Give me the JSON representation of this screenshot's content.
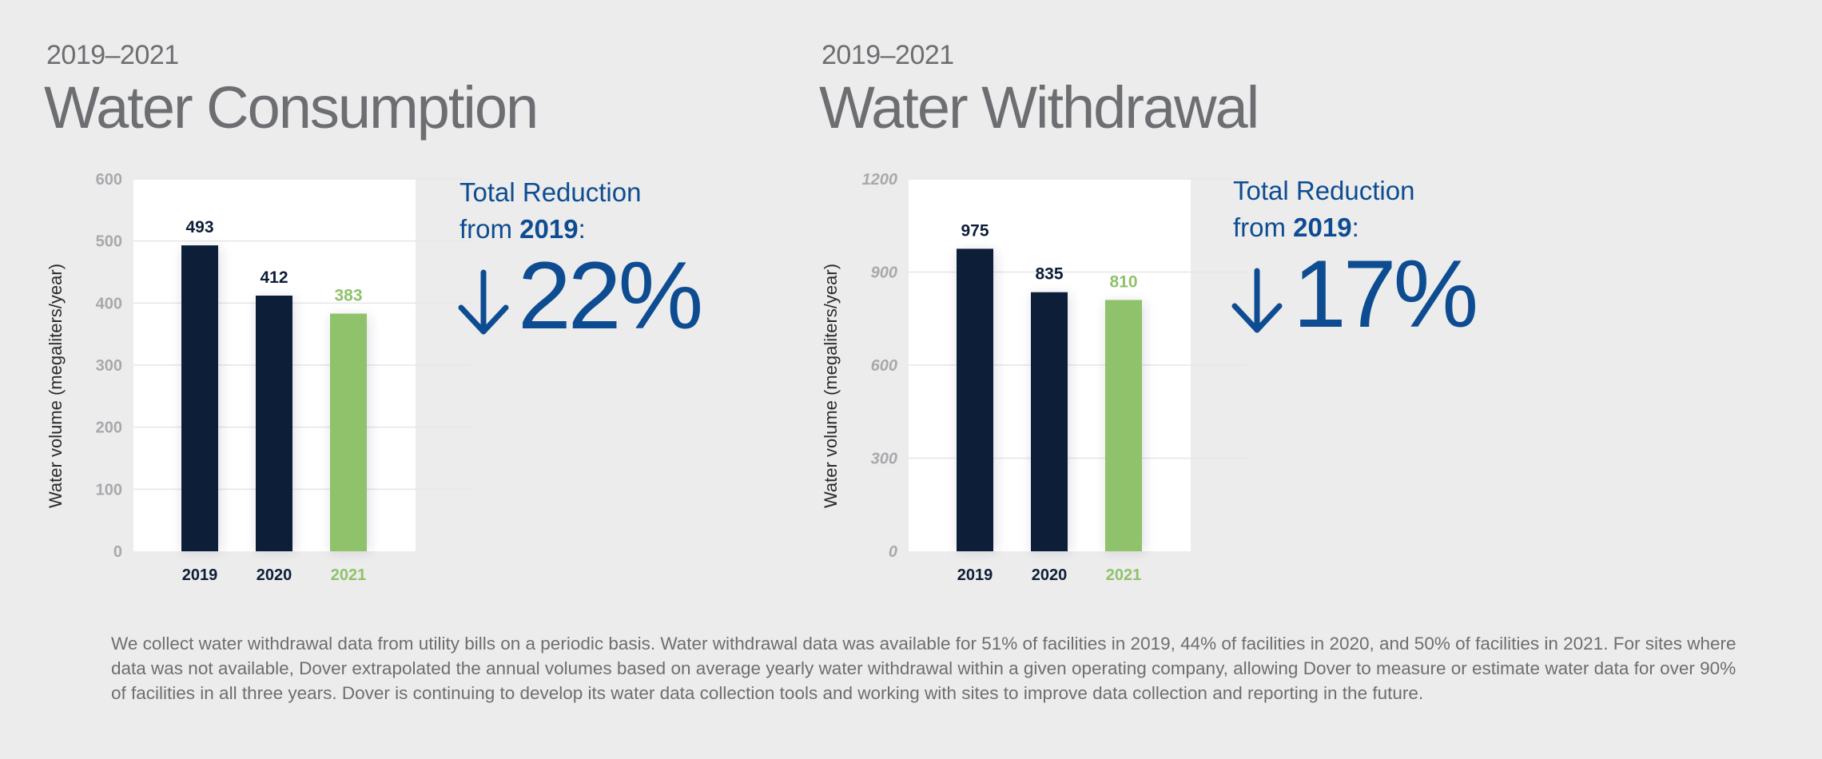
{
  "footnote": "We collect water withdrawal data from utility bills on a periodic basis. Water withdrawal data was available for 51% of facilities in 2019, 44% of facilities in 2020, and 50% of facilities in 2021. For sites where data was not available, Dover extrapolated the annual volumes based on average yearly water withdrawal within a given operating company, allowing Dover to measure or estimate water data for over 90% of facilities in all three years. Dover is continuing to develop its water data collection tools and working with sites to improve data collection and reporting in the future.",
  "colors": {
    "dark_bar": "#0d1e38",
    "green_bar": "#8fc26a",
    "accent_blue": "#0e4c92",
    "text_gray": "#6d6e71"
  },
  "panels": [
    {
      "years": "2019–2021",
      "title": "Water Consumption",
      "reduction_line1": "Total Reduction",
      "reduction_from": "from ",
      "reduction_year": "2019",
      "reduction_colon": ":",
      "reduction_arrow_icon": "arrow-down-icon",
      "reduction_pct": "22%"
    },
    {
      "years": "2019–2021",
      "title": "Water Withdrawal",
      "reduction_line1": "Total Reduction",
      "reduction_from": "from ",
      "reduction_year": "2019",
      "reduction_colon": ":",
      "reduction_arrow_icon": "arrow-down-icon",
      "reduction_pct": "17%"
    }
  ],
  "chart_data": [
    {
      "type": "bar",
      "categories": [
        "2019",
        "2020",
        "2021"
      ],
      "values": [
        493,
        412,
        383
      ],
      "data_labels": [
        "493",
        "412",
        "383"
      ],
      "bar_colors": [
        "#0d1e38",
        "#0d1e38",
        "#8fc26a"
      ],
      "ylabel": "Water volume (megaliters/year)",
      "ylim": [
        0,
        600
      ],
      "yticks": [
        0,
        100,
        200,
        300,
        400,
        500,
        600
      ],
      "ytick_style": "normal",
      "grid": true
    },
    {
      "type": "bar",
      "categories": [
        "2019",
        "2020",
        "2021"
      ],
      "values": [
        975,
        835,
        810
      ],
      "data_labels": [
        "975",
        "835",
        "810"
      ],
      "bar_colors": [
        "#0d1e38",
        "#0d1e38",
        "#8fc26a"
      ],
      "ylabel": "Water volume (megaliters/year)",
      "ylim": [
        0,
        1200
      ],
      "yticks": [
        0,
        300,
        600,
        900,
        1200
      ],
      "ytick_style": "italic",
      "grid": true
    }
  ]
}
